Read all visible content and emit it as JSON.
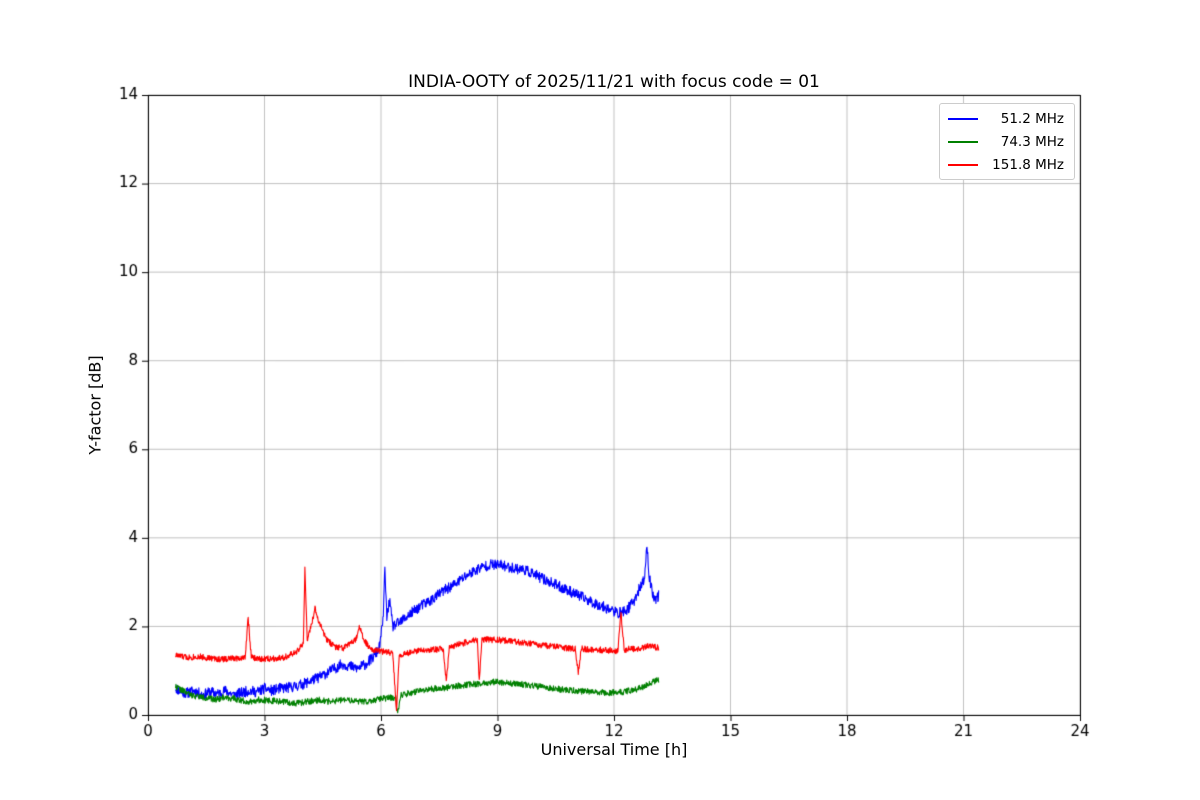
{
  "chart_data": {
    "type": "line",
    "title": "INDIA-OOTY of 2025/11/21 with focus code = 01",
    "xlabel": "Universal Time [h]",
    "ylabel": "Y-factor [dB]",
    "xlim": [
      0,
      24
    ],
    "ylim": [
      0,
      14
    ],
    "xticks": [
      0,
      3,
      6,
      9,
      12,
      15,
      18,
      21,
      24
    ],
    "yticks": [
      0,
      2,
      4,
      6,
      8,
      10,
      12,
      14
    ],
    "grid": true,
    "grid_color": "#b0b0b0",
    "axes_color": "#000000",
    "legend_position": "top-right",
    "x_range_of_data": [
      0.7,
      13.15
    ],
    "series": [
      {
        "name": "51.2 MHz",
        "color": "#0000ff",
        "noise": 0.12,
        "seed": 11,
        "points": [
          [
            0.7,
            0.62
          ],
          [
            0.85,
            0.52
          ],
          [
            1.0,
            0.5
          ],
          [
            1.2,
            0.55
          ],
          [
            1.4,
            0.45
          ],
          [
            1.6,
            0.52
          ],
          [
            1.8,
            0.48
          ],
          [
            2.0,
            0.55
          ],
          [
            2.2,
            0.45
          ],
          [
            2.4,
            0.5
          ],
          [
            2.6,
            0.55
          ],
          [
            2.8,
            0.52
          ],
          [
            3.0,
            0.6
          ],
          [
            3.2,
            0.55
          ],
          [
            3.4,
            0.6
          ],
          [
            3.6,
            0.62
          ],
          [
            3.8,
            0.65
          ],
          [
            4.0,
            0.7
          ],
          [
            4.2,
            0.78
          ],
          [
            4.4,
            0.85
          ],
          [
            4.6,
            0.95
          ],
          [
            4.8,
            1.05
          ],
          [
            5.0,
            1.15
          ],
          [
            5.2,
            1.1
          ],
          [
            5.4,
            1.05
          ],
          [
            5.6,
            1.15
          ],
          [
            5.8,
            1.3
          ],
          [
            5.95,
            1.5
          ],
          [
            6.05,
            2.1
          ],
          [
            6.1,
            3.3
          ],
          [
            6.15,
            2.2
          ],
          [
            6.22,
            2.6
          ],
          [
            6.3,
            2.0
          ],
          [
            6.5,
            2.1
          ],
          [
            6.7,
            2.25
          ],
          [
            7.0,
            2.45
          ],
          [
            7.3,
            2.6
          ],
          [
            7.6,
            2.8
          ],
          [
            7.9,
            2.95
          ],
          [
            8.2,
            3.15
          ],
          [
            8.5,
            3.3
          ],
          [
            8.8,
            3.4
          ],
          [
            9.1,
            3.38
          ],
          [
            9.4,
            3.32
          ],
          [
            9.7,
            3.28
          ],
          [
            10.0,
            3.15
          ],
          [
            10.3,
            3.02
          ],
          [
            10.6,
            2.9
          ],
          [
            10.9,
            2.78
          ],
          [
            11.2,
            2.65
          ],
          [
            11.5,
            2.52
          ],
          [
            11.8,
            2.42
          ],
          [
            12.1,
            2.3
          ],
          [
            12.3,
            2.35
          ],
          [
            12.5,
            2.55
          ],
          [
            12.65,
            2.85
          ],
          [
            12.78,
            3.05
          ],
          [
            12.85,
            3.85
          ],
          [
            12.9,
            3.15
          ],
          [
            12.97,
            2.85
          ],
          [
            13.05,
            2.6
          ],
          [
            13.15,
            2.7
          ]
        ]
      },
      {
        "name": "74.3 MHz",
        "color": "#008000",
        "noise": 0.07,
        "seed": 22,
        "points": [
          [
            0.7,
            0.65
          ],
          [
            0.9,
            0.55
          ],
          [
            1.1,
            0.45
          ],
          [
            1.4,
            0.4
          ],
          [
            1.7,
            0.35
          ],
          [
            2.0,
            0.4
          ],
          [
            2.3,
            0.35
          ],
          [
            2.6,
            0.3
          ],
          [
            2.9,
            0.35
          ],
          [
            3.2,
            0.32
          ],
          [
            3.5,
            0.3
          ],
          [
            3.8,
            0.26
          ],
          [
            4.1,
            0.3
          ],
          [
            4.4,
            0.34
          ],
          [
            4.7,
            0.3
          ],
          [
            5.0,
            0.34
          ],
          [
            5.3,
            0.32
          ],
          [
            5.6,
            0.3
          ],
          [
            5.9,
            0.35
          ],
          [
            6.15,
            0.38
          ],
          [
            6.38,
            0.4
          ],
          [
            6.43,
            0.02
          ],
          [
            6.5,
            0.45
          ],
          [
            6.8,
            0.5
          ],
          [
            7.1,
            0.55
          ],
          [
            7.4,
            0.6
          ],
          [
            7.7,
            0.62
          ],
          [
            8.0,
            0.66
          ],
          [
            8.3,
            0.69
          ],
          [
            8.6,
            0.72
          ],
          [
            8.9,
            0.75
          ],
          [
            9.2,
            0.73
          ],
          [
            9.5,
            0.7
          ],
          [
            9.8,
            0.68
          ],
          [
            10.1,
            0.64
          ],
          [
            10.4,
            0.6
          ],
          [
            10.7,
            0.57
          ],
          [
            11.0,
            0.55
          ],
          [
            11.3,
            0.53
          ],
          [
            11.6,
            0.52
          ],
          [
            11.9,
            0.5
          ],
          [
            12.2,
            0.52
          ],
          [
            12.5,
            0.56
          ],
          [
            12.8,
            0.65
          ],
          [
            13.0,
            0.75
          ],
          [
            13.15,
            0.8
          ]
        ]
      },
      {
        "name": "151.8 MHz",
        "color": "#ff0000",
        "noise": 0.07,
        "seed": 33,
        "points": [
          [
            0.7,
            1.35
          ],
          [
            1.0,
            1.3
          ],
          [
            1.3,
            1.32
          ],
          [
            1.6,
            1.28
          ],
          [
            1.9,
            1.26
          ],
          [
            2.2,
            1.28
          ],
          [
            2.5,
            1.3
          ],
          [
            2.58,
            2.2
          ],
          [
            2.66,
            1.3
          ],
          [
            2.9,
            1.26
          ],
          [
            3.2,
            1.28
          ],
          [
            3.5,
            1.3
          ],
          [
            3.8,
            1.4
          ],
          [
            4.0,
            1.6
          ],
          [
            4.04,
            3.3
          ],
          [
            4.1,
            1.7
          ],
          [
            4.2,
            2.0
          ],
          [
            4.3,
            2.4
          ],
          [
            4.4,
            2.1
          ],
          [
            4.5,
            1.9
          ],
          [
            4.6,
            1.7
          ],
          [
            4.8,
            1.55
          ],
          [
            5.0,
            1.5
          ],
          [
            5.2,
            1.6
          ],
          [
            5.35,
            1.7
          ],
          [
            5.45,
            2.0
          ],
          [
            5.55,
            1.7
          ],
          [
            5.7,
            1.52
          ],
          [
            5.9,
            1.46
          ],
          [
            6.1,
            1.42
          ],
          [
            6.3,
            1.4
          ],
          [
            6.4,
            0.1
          ],
          [
            6.47,
            1.36
          ],
          [
            6.7,
            1.4
          ],
          [
            7.0,
            1.45
          ],
          [
            7.3,
            1.48
          ],
          [
            7.6,
            1.5
          ],
          [
            7.68,
            0.75
          ],
          [
            7.76,
            1.52
          ],
          [
            8.0,
            1.6
          ],
          [
            8.3,
            1.66
          ],
          [
            8.48,
            1.7
          ],
          [
            8.53,
            0.8
          ],
          [
            8.6,
            1.7
          ],
          [
            8.9,
            1.7
          ],
          [
            9.2,
            1.68
          ],
          [
            9.5,
            1.65
          ],
          [
            9.8,
            1.62
          ],
          [
            10.1,
            1.58
          ],
          [
            10.4,
            1.55
          ],
          [
            10.7,
            1.52
          ],
          [
            11.0,
            1.5
          ],
          [
            11.08,
            0.95
          ],
          [
            11.16,
            1.5
          ],
          [
            11.5,
            1.48
          ],
          [
            11.8,
            1.46
          ],
          [
            12.1,
            1.45
          ],
          [
            12.18,
            2.3
          ],
          [
            12.26,
            1.48
          ],
          [
            12.6,
            1.5
          ],
          [
            12.9,
            1.56
          ],
          [
            13.15,
            1.52
          ]
        ]
      }
    ]
  }
}
